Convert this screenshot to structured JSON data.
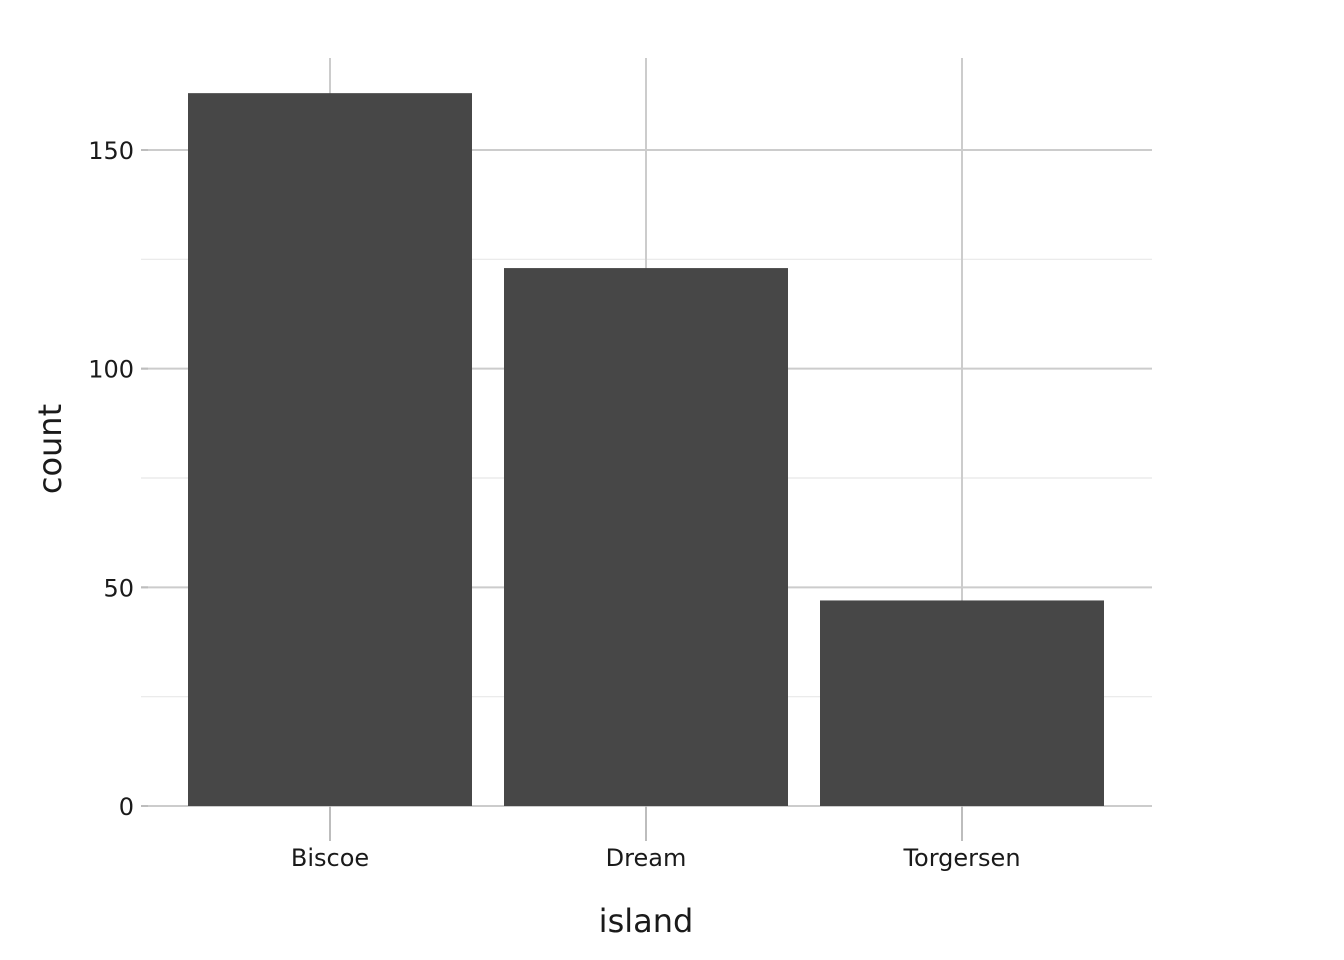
{
  "chart_data": {
    "type": "bar",
    "title": "",
    "xlabel": "island",
    "ylabel": "count",
    "categories": [
      "Biscoe",
      "Dream",
      "Torgersen"
    ],
    "values": [
      163,
      123,
      47
    ],
    "ylim": [
      0,
      170
    ],
    "yticks": [
      0,
      50,
      100,
      150
    ],
    "yminor": [
      25,
      75,
      125
    ],
    "grid": true,
    "bar_color": "#474747"
  }
}
